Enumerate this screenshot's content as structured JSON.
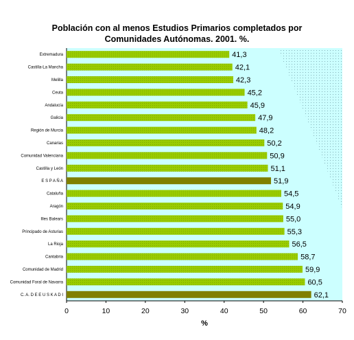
{
  "chart_data": {
    "type": "bar",
    "orientation": "horizontal",
    "title_lines": [
      "Población con al menos Estudios Primarios completados por",
      "Comunidades Autónomas. 2001. %."
    ],
    "xlabel": "%",
    "ylabel": "",
    "xlim": [
      0,
      70
    ],
    "xticks": [
      0,
      10,
      20,
      30,
      40,
      50,
      60,
      70
    ],
    "grid": false,
    "legend": "none",
    "plot_background": "#ccffff",
    "bar_color": "#99cc00",
    "highlight_color": "#808000",
    "categories": [
      "Extremadura",
      "Castilla-La Mancha",
      "Melilla",
      "Ceuta",
      "Andalucía",
      "Galicia",
      "Región de Murcia",
      "Canarias",
      "Comunidad Valenciana",
      "Castilla y León",
      "E S P A Ñ A",
      "Cataluña",
      "Aragón",
      "Illes Balears",
      "Principado de Asturias",
      "La Rioja",
      "Cantabria",
      "Comunidad de Madrid",
      "Comunidad Foral de Navarra",
      "C. A. D E  E U S K A D I"
    ],
    "values": [
      41.3,
      42.1,
      42.3,
      45.2,
      45.9,
      47.9,
      48.2,
      50.2,
      50.9,
      51.1,
      51.9,
      54.5,
      54.9,
      55.0,
      55.3,
      56.5,
      58.7,
      59.9,
      60.5,
      62.1
    ],
    "value_labels": [
      "41,3",
      "42,1",
      "42,3",
      "45,2",
      "45,9",
      "47,9",
      "48,2",
      "50,2",
      "50,9",
      "51,1",
      "51,9",
      "54,5",
      "54,9",
      "55,0",
      "55,3",
      "56,5",
      "58,7",
      "59,9",
      "60,5",
      "62,1"
    ],
    "highlighted": [
      10,
      19
    ]
  }
}
